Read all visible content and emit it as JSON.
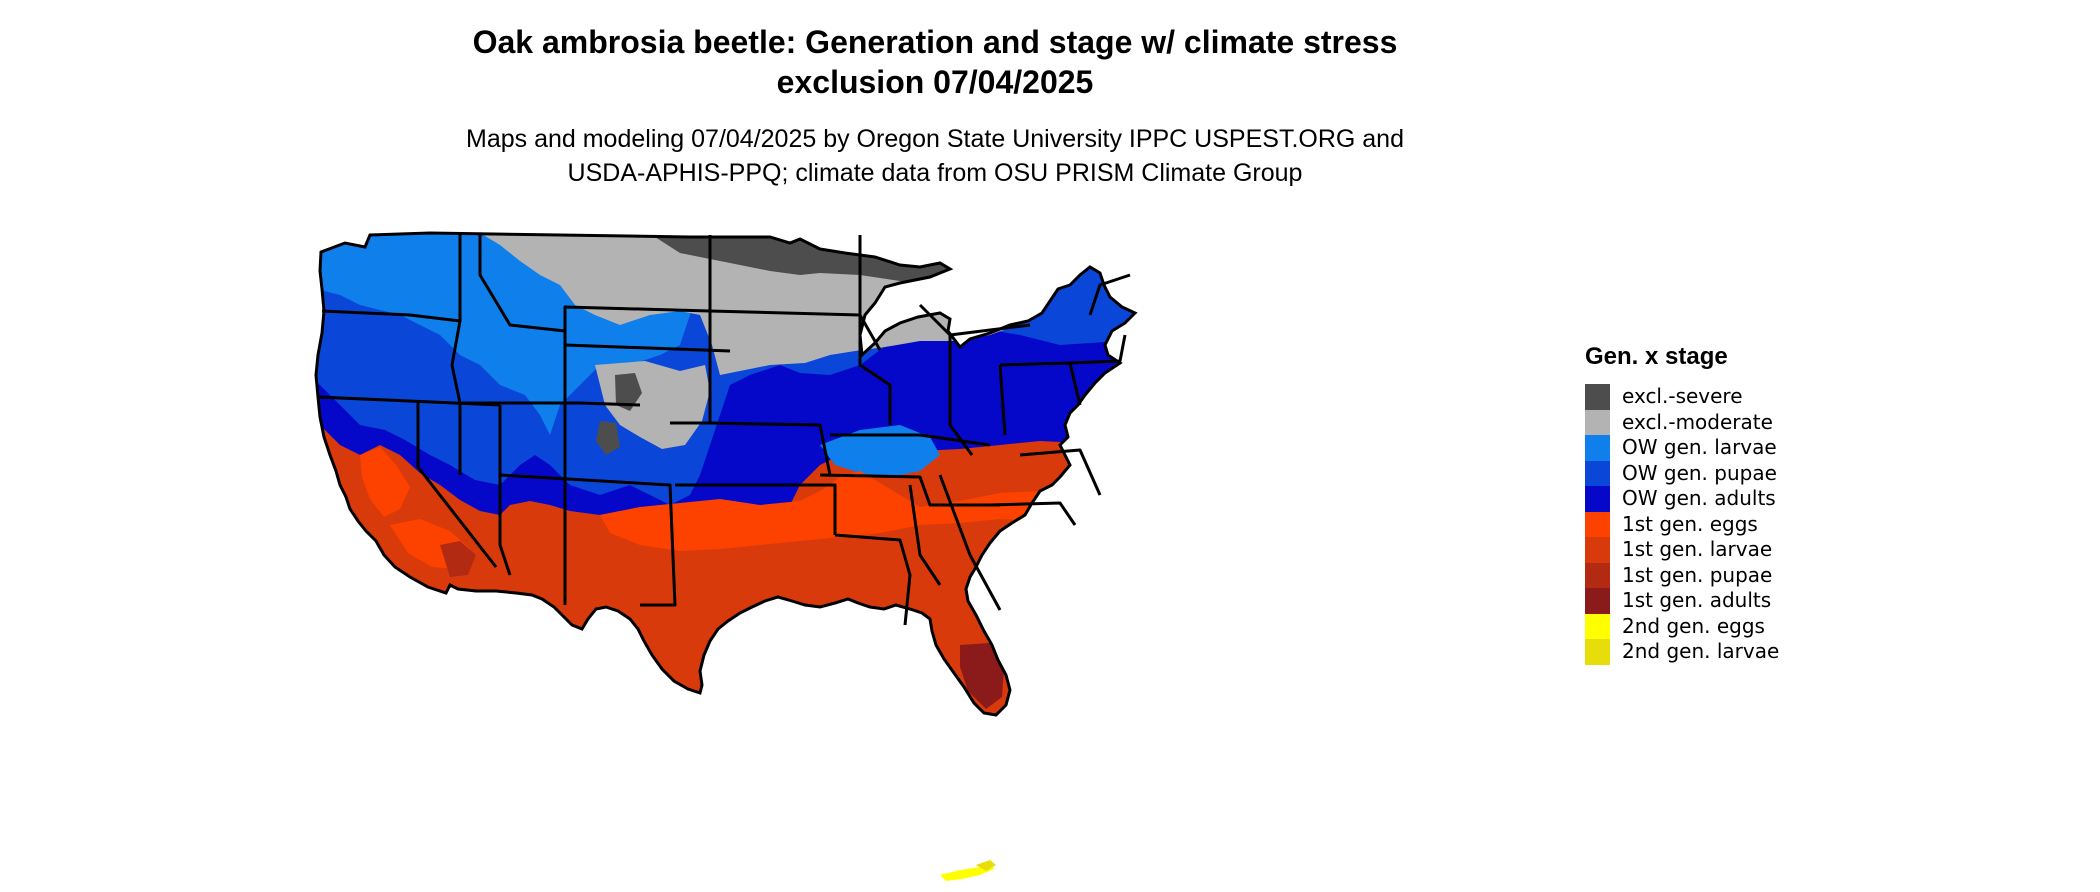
{
  "title": {
    "line1": "Oak ambrosia beetle: Generation and stage w/ climate stress",
    "line2": "exclusion 07/04/2025"
  },
  "subtitle": {
    "line1": "Maps and modeling 07/04/2025 by Oregon State University IPPC USPEST.ORG and",
    "line2": "USDA-APHIS-PPQ; climate data from OSU PRISM Climate Group"
  },
  "map": {
    "name": "contiguous United States with state boundaries",
    "state_border_color": "#000000"
  },
  "legend": {
    "title": "Gen. x stage",
    "items": [
      {
        "label": "excl.-severe",
        "color": "#4d4d4d"
      },
      {
        "label": "excl.-moderate",
        "color": "#b3b3b3"
      },
      {
        "label": "OW gen. larvae",
        "color": "#0f7fec"
      },
      {
        "label": "OW gen. pupae",
        "color": "#0a47d9"
      },
      {
        "label": "OW gen. adults",
        "color": "#0508c8"
      },
      {
        "label": "1st gen. eggs",
        "color": "#fd4200"
      },
      {
        "label": "1st gen. larvae",
        "color": "#d93a0c"
      },
      {
        "label": "1st gen. pupae",
        "color": "#b32a12"
      },
      {
        "label": "1st gen. adults",
        "color": "#8b1a1a"
      },
      {
        "label": "2nd gen. eggs",
        "color": "#ffff00"
      },
      {
        "label": "2nd gen. larvae",
        "color": "#e6dd0a"
      }
    ]
  }
}
